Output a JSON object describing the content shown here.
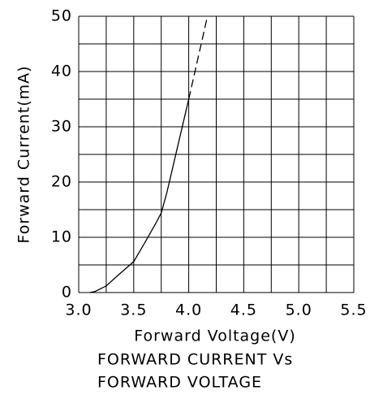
{
  "chart_data": {
    "type": "line",
    "title": [
      "FORWARD CURRENT Vs",
      "FORWARD VOLTAGE"
    ],
    "x_label": "Forward Voltage(V)",
    "y_label": "Forward Current(mA)",
    "xlim": [
      3.0,
      5.5
    ],
    "xticks": [
      {
        "value": 3.0,
        "label": "3.0"
      },
      3.5,
      {
        "value": 4.0,
        "label": "4.0"
      },
      4.5,
      {
        "value": 5.0,
        "label": "5.0"
      },
      5.5
    ],
    "xgrid": [
      3.25,
      3.75,
      4.25,
      4.75,
      5.25
    ],
    "ylim": [
      0,
      50
    ],
    "yticks": [
      0,
      10,
      20,
      30,
      40,
      50
    ],
    "ygrid": [
      5,
      15,
      25,
      35,
      45
    ],
    "grid": true,
    "series": [
      {
        "color": "#000000",
        "dash": false,
        "x": [
          3.1,
          3.15,
          3.25,
          3.35,
          3.5,
          3.6,
          3.7,
          3.75,
          3.8,
          3.9,
          4.0
        ],
        "values": [
          0,
          0.2,
          1.2,
          3,
          5.6,
          9,
          12.5,
          14.4,
          18,
          26.5,
          35
        ]
      },
      {
        "color": "#000000",
        "dash": true,
        "x": [
          4.0,
          4.17
        ],
        "values": [
          35,
          50
        ]
      }
    ]
  }
}
